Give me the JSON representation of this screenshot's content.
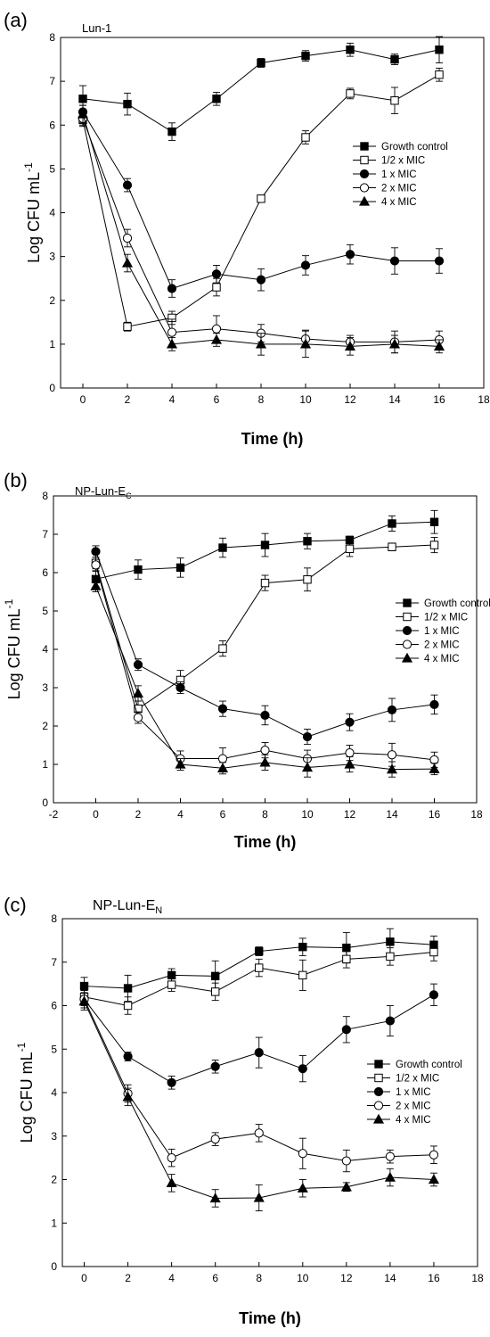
{
  "legend_labels": [
    "Growth control",
    "1/2 x MIC",
    "1 x MIC",
    "2 x MIC",
    "4 x MIC"
  ],
  "chart_data": [
    {
      "panel": "(a)",
      "title": "Lun-1",
      "title_sub": "",
      "type": "line",
      "xlabel": "Time (h)",
      "ylabel": "Log CFU mL",
      "ylabel_sup": "-1",
      "xlim": [
        -1,
        18
      ],
      "ylim": [
        0,
        8
      ],
      "xticks": [
        0,
        2,
        4,
        6,
        8,
        10,
        12,
        14,
        16,
        18
      ],
      "yticks": [
        0,
        1,
        2,
        3,
        4,
        5,
        6,
        7,
        8
      ],
      "x": [
        0,
        2,
        4,
        6,
        8,
        10,
        12,
        14,
        16
      ],
      "series": [
        {
          "name": "Growth control",
          "marker": "square-filled",
          "values": [
            6.6,
            6.48,
            5.85,
            6.6,
            7.42,
            7.58,
            7.72,
            7.5,
            7.72
          ],
          "errors": [
            0.3,
            0.25,
            0.2,
            0.15,
            0.1,
            0.12,
            0.15,
            0.12,
            0.3
          ]
        },
        {
          "name": "1/2 x MIC",
          "marker": "square-open",
          "values": [
            6.12,
            1.4,
            1.6,
            2.3,
            4.32,
            5.72,
            6.72,
            6.56,
            7.15
          ],
          "errors": [
            0.15,
            0.1,
            0.15,
            0.2,
            0.05,
            0.15,
            0.12,
            0.3,
            0.15
          ]
        },
        {
          "name": "1 x MIC",
          "marker": "circle-filled",
          "values": [
            6.3,
            4.63,
            2.27,
            2.6,
            2.47,
            2.8,
            3.05,
            2.9,
            2.9
          ],
          "errors": [
            0.15,
            0.15,
            0.2,
            0.2,
            0.25,
            0.22,
            0.22,
            0.3,
            0.28
          ]
        },
        {
          "name": "2 x MIC",
          "marker": "circle-open",
          "values": [
            6.15,
            3.42,
            1.27,
            1.35,
            1.25,
            1.12,
            1.05,
            1.05,
            1.1
          ],
          "errors": [
            0.15,
            0.2,
            0.3,
            0.3,
            0.2,
            0.2,
            0.15,
            0.25,
            0.2
          ]
        },
        {
          "name": "4 x MIC",
          "marker": "triangle-filled",
          "values": [
            6.25,
            2.85,
            1.0,
            1.1,
            1.0,
            1.0,
            0.95,
            1.0,
            0.95
          ],
          "errors": [
            0.2,
            0.2,
            0.15,
            0.15,
            0.25,
            0.3,
            0.2,
            0.2,
            0.15
          ]
        }
      ]
    },
    {
      "panel": "(b)",
      "title": "NP-Lun-E",
      "title_sub": "C",
      "type": "line",
      "xlabel": "Time (h)",
      "ylabel": "Log CFU mL",
      "ylabel_sup": "-1",
      "xlim": [
        -2,
        18
      ],
      "ylim": [
        0,
        8
      ],
      "xticks": [
        -2,
        0,
        2,
        4,
        6,
        8,
        10,
        12,
        14,
        16,
        18
      ],
      "yticks": [
        0,
        1,
        2,
        3,
        4,
        5,
        6,
        7,
        8
      ],
      "x": [
        0,
        2,
        4,
        6,
        8,
        10,
        12,
        14,
        16
      ],
      "series": [
        {
          "name": "Growth control",
          "marker": "square-filled",
          "values": [
            5.83,
            6.08,
            6.13,
            6.65,
            6.72,
            6.82,
            6.85,
            7.28,
            7.32
          ],
          "errors": [
            0.2,
            0.25,
            0.25,
            0.25,
            0.3,
            0.2,
            0.1,
            0.2,
            0.3
          ]
        },
        {
          "name": "1/2 x MIC",
          "marker": "square-open",
          "values": [
            6.25,
            2.45,
            3.2,
            4.02,
            5.73,
            5.82,
            6.62,
            6.67,
            6.72
          ],
          "errors": [
            0.15,
            0.2,
            0.25,
            0.2,
            0.2,
            0.3,
            0.2,
            0.1,
            0.2
          ]
        },
        {
          "name": "1 x MIC",
          "marker": "circle-filled",
          "values": [
            6.55,
            3.6,
            3.0,
            2.45,
            2.28,
            1.72,
            2.1,
            2.42,
            2.56
          ],
          "errors": [
            0.15,
            0.15,
            0.15,
            0.2,
            0.25,
            0.2,
            0.22,
            0.3,
            0.25
          ]
        },
        {
          "name": "2 x MIC",
          "marker": "circle-open",
          "values": [
            6.2,
            2.22,
            1.15,
            1.15,
            1.37,
            1.15,
            1.3,
            1.25,
            1.12
          ],
          "errors": [
            0.15,
            0.15,
            0.2,
            0.28,
            0.2,
            0.22,
            0.2,
            0.3,
            0.2
          ]
        },
        {
          "name": "4 x MIC",
          "marker": "triangle-filled",
          "values": [
            5.65,
            2.85,
            1.0,
            0.9,
            1.05,
            0.92,
            1.0,
            0.87,
            0.88
          ],
          "errors": [
            0.15,
            0.2,
            0.15,
            0.15,
            0.2,
            0.25,
            0.2,
            0.2,
            0.15
          ]
        }
      ]
    },
    {
      "panel": "(c)",
      "title": "NP-Lun-E",
      "title_sub": "N",
      "type": "line",
      "xlabel": "Time (h)",
      "ylabel": "Log CFU mL",
      "ylabel_sup": "-1",
      "xlim": [
        -1,
        18
      ],
      "ylim": [
        0,
        8
      ],
      "xticks": [
        0,
        2,
        4,
        6,
        8,
        10,
        12,
        14,
        16,
        18
      ],
      "yticks": [
        0,
        1,
        2,
        3,
        4,
        5,
        6,
        7,
        8
      ],
      "x": [
        0,
        2,
        4,
        6,
        8,
        10,
        12,
        14,
        16
      ],
      "series": [
        {
          "name": "Growth control",
          "marker": "square-filled",
          "values": [
            6.45,
            6.4,
            6.7,
            6.68,
            7.25,
            7.35,
            7.33,
            7.47,
            7.4
          ],
          "errors": [
            0.2,
            0.3,
            0.15,
            0.35,
            0.1,
            0.2,
            0.35,
            0.3,
            0.2
          ]
        },
        {
          "name": "1/2 x MIC",
          "marker": "square-open",
          "values": [
            6.2,
            6.0,
            6.48,
            6.32,
            6.87,
            6.7,
            7.07,
            7.13,
            7.23
          ],
          "errors": [
            0.2,
            0.2,
            0.15,
            0.2,
            0.2,
            0.35,
            0.2,
            0.2,
            0.2
          ]
        },
        {
          "name": "1 x MIC",
          "marker": "circle-filled",
          "values": [
            6.15,
            4.83,
            4.23,
            4.6,
            4.92,
            4.55,
            5.45,
            5.65,
            6.25
          ],
          "errors": [
            0.2,
            0.1,
            0.15,
            0.15,
            0.35,
            0.3,
            0.3,
            0.35,
            0.25
          ]
        },
        {
          "name": "2 x MIC",
          "marker": "circle-open",
          "values": [
            6.15,
            3.98,
            2.5,
            2.93,
            3.07,
            2.6,
            2.43,
            2.53,
            2.57
          ],
          "errors": [
            0.2,
            0.2,
            0.2,
            0.15,
            0.2,
            0.35,
            0.25,
            0.15,
            0.2
          ]
        },
        {
          "name": "4 x MIC",
          "marker": "triangle-filled",
          "values": [
            6.1,
            3.9,
            1.92,
            1.57,
            1.58,
            1.8,
            1.83,
            2.05,
            2.0
          ],
          "errors": [
            0.2,
            0.2,
            0.2,
            0.2,
            0.3,
            0.2,
            0.1,
            0.2,
            0.15
          ]
        }
      ]
    }
  ]
}
